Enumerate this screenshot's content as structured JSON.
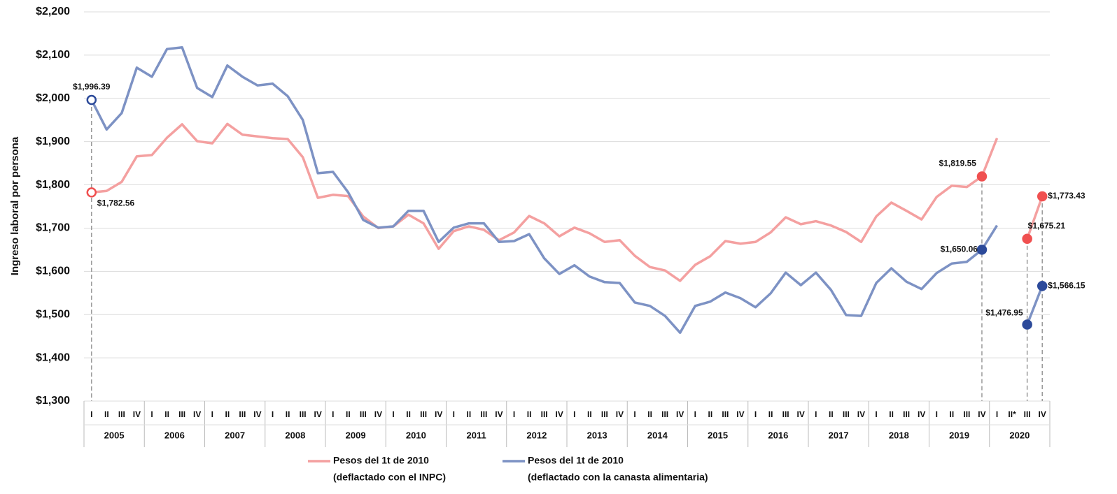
{
  "chart_data": {
    "type": "line",
    "y_label": "Ingreso laboral por persona",
    "categories": [
      "I",
      "II",
      "III",
      "IV",
      "I",
      "II",
      "III",
      "IV",
      "I",
      "II",
      "III",
      "IV",
      "I",
      "II",
      "III",
      "IV",
      "I",
      "II",
      "III",
      "IV",
      "I",
      "II",
      "III",
      "IV",
      "I",
      "II",
      "III",
      "IV",
      "I",
      "II",
      "III",
      "IV",
      "I",
      "II",
      "III",
      "IV",
      "I",
      "II",
      "III",
      "IV",
      "I",
      "II",
      "III",
      "IV",
      "I",
      "II",
      "III",
      "IV",
      "I",
      "II",
      "III",
      "IV",
      "I",
      "II",
      "III",
      "IV",
      "I",
      "II",
      "III",
      "IV",
      "I",
      "II*",
      "III",
      "IV"
    ],
    "years": [
      "2005",
      "2006",
      "2007",
      "2008",
      "2009",
      "2010",
      "2011",
      "2012",
      "2013",
      "2014",
      "2015",
      "2016",
      "2017",
      "2018",
      "2019",
      "2020"
    ],
    "ylim": [
      1300,
      2200
    ],
    "yticks": [
      {
        "value": 1300,
        "label": "$1,300"
      },
      {
        "value": 1400,
        "label": "$1,400"
      },
      {
        "value": 1500,
        "label": "$1,500"
      },
      {
        "value": 1600,
        "label": "$1,600"
      },
      {
        "value": 1700,
        "label": "$1,700"
      },
      {
        "value": 1800,
        "label": "$1,800"
      },
      {
        "value": 1900,
        "label": "$1,900"
      },
      {
        "value": 2000,
        "label": "$2,000"
      },
      {
        "value": 2100,
        "label": "$2,100"
      },
      {
        "value": 2200,
        "label": "$2,200"
      }
    ],
    "grid": true,
    "series": [
      {
        "name": "Pesos del 1t de 2010",
        "subname": "(deflactado con el INPC)",
        "color": "#f4a0a0",
        "marker_color": "#f05050",
        "values": [
          1782.56,
          1786,
          1807,
          1866,
          1869,
          1909,
          1940,
          1901,
          1896,
          1941,
          1916,
          1912,
          1908,
          1906,
          1864,
          1770,
          1777,
          1774,
          1727,
          1700,
          1704,
          1731,
          1711,
          1652,
          1693,
          1704,
          1696,
          1672,
          1690,
          1728,
          1711,
          1681,
          1701,
          1688,
          1668,
          1672,
          1636,
          1610,
          1602,
          1578,
          1615,
          1635,
          1670,
          1664,
          1668,
          1690,
          1725,
          1709,
          1716,
          1706,
          1691,
          1668,
          1727,
          1759,
          1740,
          1720,
          1772,
          1798,
          1795,
          1819.55,
          1908,
          null,
          1675.21,
          1773.43
        ],
        "value_labels": [
          "$1,782.56",
          null,
          null,
          null,
          null,
          null,
          null,
          null,
          null,
          null,
          null,
          null,
          null,
          null,
          null,
          null,
          null,
          null,
          null,
          null,
          null,
          null,
          null,
          null,
          null,
          null,
          null,
          null,
          null,
          null,
          null,
          null,
          null,
          null,
          null,
          null,
          null,
          null,
          null,
          null,
          null,
          null,
          null,
          null,
          null,
          null,
          null,
          null,
          null,
          null,
          null,
          null,
          null,
          null,
          null,
          null,
          null,
          null,
          null,
          "$1,819.55",
          null,
          null,
          "$1,675.21",
          "$1,773.43"
        ]
      },
      {
        "name": "Pesos del 1t de 2010",
        "subname": "(deflactado con la canasta alimentaria)",
        "color": "#7d92c4",
        "marker_color": "#2c4a9a",
        "values": [
          1996.39,
          1928,
          1966,
          2071,
          2050,
          2114,
          2118,
          2024,
          2003,
          2076,
          2050,
          2030,
          2034,
          2005,
          1950,
          1827,
          1830,
          1783,
          1719,
          1701,
          1704,
          1740,
          1740,
          1668,
          1701,
          1711,
          1711,
          1668,
          1670,
          1686,
          1630,
          1594,
          1614,
          1588,
          1575,
          1573,
          1528,
          1520,
          1497,
          1458,
          1520,
          1530,
          1551,
          1538,
          1517,
          1549,
          1597,
          1568,
          1597,
          1557,
          1499,
          1497,
          1573,
          1607,
          1576,
          1559,
          1596,
          1618,
          1622,
          1650.06,
          1706,
          null,
          1476.95,
          1566.15
        ],
        "value_labels": [
          "$1,996.39",
          null,
          null,
          null,
          null,
          null,
          null,
          null,
          null,
          null,
          null,
          null,
          null,
          null,
          null,
          null,
          null,
          null,
          null,
          null,
          null,
          null,
          null,
          null,
          null,
          null,
          null,
          null,
          null,
          null,
          null,
          null,
          null,
          null,
          null,
          null,
          null,
          null,
          null,
          null,
          null,
          null,
          null,
          null,
          null,
          null,
          null,
          null,
          null,
          null,
          null,
          null,
          null,
          null,
          null,
          null,
          null,
          null,
          null,
          "$1,650.06",
          null,
          null,
          "$1,476.95",
          "$1,566.15"
        ]
      }
    ]
  }
}
